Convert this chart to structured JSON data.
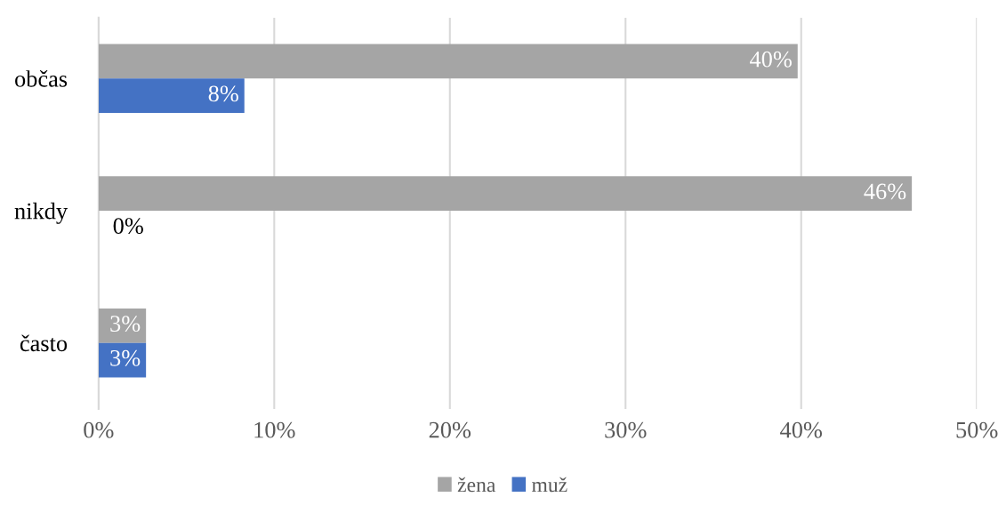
{
  "chart_data": {
    "type": "bar",
    "orientation": "horizontal",
    "categories": [
      "občas",
      "nikdy",
      "často"
    ],
    "series": [
      {
        "name": "žena",
        "color": "#a5a5a5",
        "values": [
          39.8,
          46.3,
          2.7
        ],
        "value_labels": [
          "40%",
          "46%",
          "3%"
        ]
      },
      {
        "name": "muž",
        "color": "#4472c4",
        "values": [
          8.3,
          0,
          2.7
        ],
        "value_labels": [
          "8%",
          "0%",
          "3%"
        ]
      }
    ],
    "xlim": [
      0,
      50
    ],
    "xticks": [
      {
        "value": 0,
        "label": "0%"
      },
      {
        "value": 10,
        "label": "10%"
      },
      {
        "value": 20,
        "label": "20%"
      },
      {
        "value": 30,
        "label": "30%"
      },
      {
        "value": 40,
        "label": "40%"
      },
      {
        "value": 50,
        "label": "50%"
      }
    ],
    "grid": "x",
    "legend": "bottom"
  }
}
